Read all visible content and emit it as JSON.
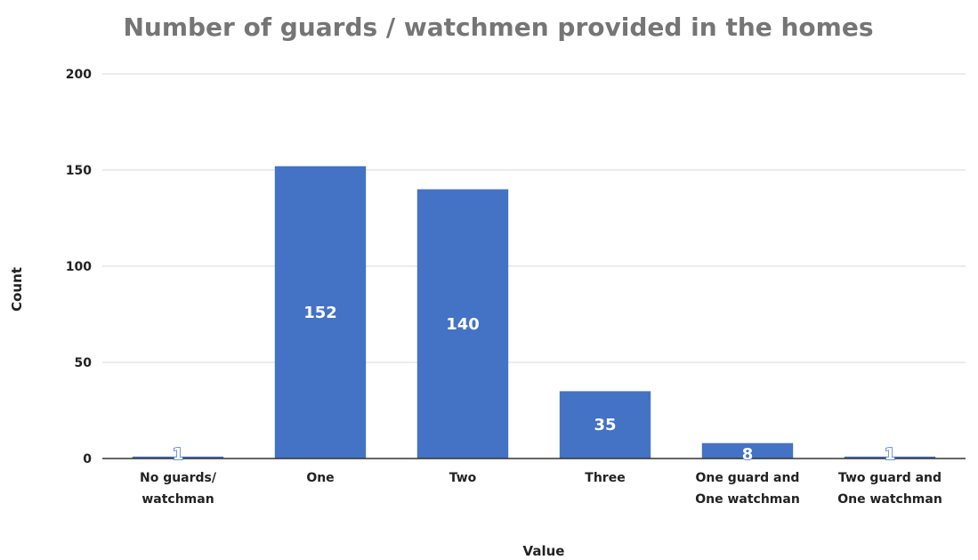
{
  "chart_data": {
    "type": "bar",
    "title": "Number of guards / watchmen provided in the homes",
    "xlabel": "Value",
    "ylabel": "Count",
    "categories": [
      [
        "No guards/",
        "watchman"
      ],
      [
        "One"
      ],
      [
        "Two"
      ],
      [
        "Three"
      ],
      [
        "One guard and",
        "One watchman"
      ],
      [
        "Two guard and",
        "One watchman"
      ]
    ],
    "values": [
      1,
      152,
      140,
      35,
      8,
      1
    ],
    "data_labels": [
      "1",
      "152",
      "140",
      "35",
      "8",
      "1"
    ],
    "ylim": [
      0,
      200
    ],
    "yticks": [
      "0",
      "50",
      "100",
      "150",
      "200"
    ],
    "ytick_values": [
      0,
      50,
      100,
      150,
      200
    ],
    "grid": true,
    "legend": "none",
    "colors": {
      "bar": "#4472C4",
      "label_inside": "#ffffff",
      "label_small_fill": "#ffffff",
      "label_small_stroke": "#4472C4"
    }
  }
}
